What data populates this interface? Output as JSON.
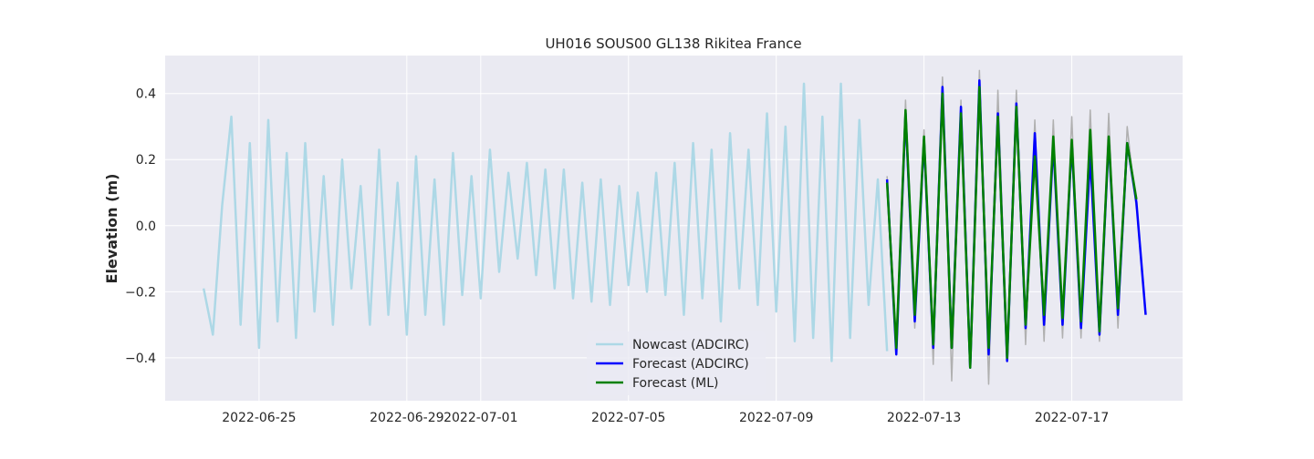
{
  "chart_data": {
    "type": "line",
    "title": "UH016 SOUS00 GL138 Rikitea France",
    "xlabel": "",
    "ylabel": "Elevation (m)",
    "x_ticks": [
      "2022-06-25",
      "2022-06-29",
      "2022-07-01",
      "2022-07-05",
      "2022-07-09",
      "2022-07-13",
      "2022-07-17"
    ],
    "y_ticks": [
      "0.4",
      "0.2",
      "0.0",
      "−0.2",
      "−0.4"
    ],
    "y_tick_values": [
      0.4,
      0.2,
      0.0,
      -0.2,
      -0.4
    ],
    "xlim": [
      "2022-06-22 11:00",
      "2022-07-20 00:00"
    ],
    "ylim": [
      -0.53,
      0.515
    ],
    "grid": true,
    "legend_position": "lower-center",
    "colors": {
      "background": "#eaeaf2",
      "grid": "#ffffff",
      "nowcast": "#add8e6",
      "forecast_adcirc": "#0000ff",
      "forecast_ml": "#008000",
      "observed": "#b0b0b0"
    },
    "series": [
      {
        "name": "Nowcast (ADCIRC)",
        "color": "#add8e6",
        "x": [
          "2022-06-23 12:00",
          "2022-06-23 18:00",
          "2022-06-24 00:00",
          "2022-06-24 06:00",
          "2022-06-24 12:00",
          "2022-06-24 18:00",
          "2022-06-25 00:00",
          "2022-06-25 06:00",
          "2022-06-25 12:00",
          "2022-06-25 18:00",
          "2022-06-26 00:00",
          "2022-06-26 06:00",
          "2022-06-26 12:00",
          "2022-06-26 18:00",
          "2022-06-27 00:00",
          "2022-06-27 06:00",
          "2022-06-27 12:00",
          "2022-06-27 18:00",
          "2022-06-28 00:00",
          "2022-06-28 06:00",
          "2022-06-28 12:00",
          "2022-06-28 18:00",
          "2022-06-29 00:00",
          "2022-06-29 06:00",
          "2022-06-29 12:00",
          "2022-06-29 18:00",
          "2022-06-30 00:00",
          "2022-06-30 06:00",
          "2022-06-30 12:00",
          "2022-06-30 18:00",
          "2022-07-01 00:00",
          "2022-07-01 06:00",
          "2022-07-01 12:00",
          "2022-07-01 18:00",
          "2022-07-02 00:00",
          "2022-07-02 06:00",
          "2022-07-02 12:00",
          "2022-07-02 18:00",
          "2022-07-03 00:00",
          "2022-07-03 06:00",
          "2022-07-03 12:00",
          "2022-07-03 18:00",
          "2022-07-04 00:00",
          "2022-07-04 06:00",
          "2022-07-04 12:00",
          "2022-07-04 18:00",
          "2022-07-05 00:00",
          "2022-07-05 06:00",
          "2022-07-05 12:00",
          "2022-07-05 18:00",
          "2022-07-06 00:00",
          "2022-07-06 06:00",
          "2022-07-06 12:00",
          "2022-07-06 18:00",
          "2022-07-07 00:00",
          "2022-07-07 06:00",
          "2022-07-07 12:00",
          "2022-07-07 18:00",
          "2022-07-08 00:00",
          "2022-07-08 06:00",
          "2022-07-08 12:00",
          "2022-07-08 18:00",
          "2022-07-09 00:00",
          "2022-07-09 06:00",
          "2022-07-09 12:00",
          "2022-07-09 18:00",
          "2022-07-10 00:00",
          "2022-07-10 06:00",
          "2022-07-10 12:00",
          "2022-07-10 18:00",
          "2022-07-11 00:00",
          "2022-07-11 06:00",
          "2022-07-11 12:00",
          "2022-07-11 18:00",
          "2022-07-12 00:00"
        ],
        "y": [
          -0.19,
          -0.33,
          0.06,
          0.33,
          -0.3,
          0.25,
          -0.37,
          0.32,
          -0.29,
          0.22,
          -0.34,
          0.25,
          -0.26,
          0.15,
          -0.3,
          0.2,
          -0.19,
          0.12,
          -0.3,
          0.23,
          -0.27,
          0.13,
          -0.33,
          0.21,
          -0.27,
          0.14,
          -0.3,
          0.22,
          -0.21,
          0.15,
          -0.22,
          0.23,
          -0.14,
          0.16,
          -0.1,
          0.19,
          -0.15,
          0.17,
          -0.19,
          0.17,
          -0.22,
          0.13,
          -0.23,
          0.14,
          -0.24,
          0.12,
          -0.18,
          0.1,
          -0.2,
          0.16,
          -0.21,
          0.19,
          -0.27,
          0.25,
          -0.22,
          0.23,
          -0.29,
          0.28,
          -0.19,
          0.23,
          -0.24,
          0.34,
          -0.26,
          0.3,
          -0.35,
          0.43,
          -0.34,
          0.33,
          -0.41,
          0.43,
          -0.34,
          0.32,
          -0.24,
          0.14,
          -0.38
        ]
      },
      {
        "name": "Forecast (ADCIRC)",
        "color": "#0000ff",
        "x": [
          "2022-07-12 00:00",
          "2022-07-12 06:00",
          "2022-07-12 12:00",
          "2022-07-12 18:00",
          "2022-07-13 00:00",
          "2022-07-13 06:00",
          "2022-07-13 12:00",
          "2022-07-13 18:00",
          "2022-07-14 00:00",
          "2022-07-14 06:00",
          "2022-07-14 12:00",
          "2022-07-14 18:00",
          "2022-07-15 00:00",
          "2022-07-15 06:00",
          "2022-07-15 12:00",
          "2022-07-15 18:00",
          "2022-07-16 00:00",
          "2022-07-16 06:00",
          "2022-07-16 12:00",
          "2022-07-16 18:00",
          "2022-07-17 00:00",
          "2022-07-17 06:00",
          "2022-07-17 12:00",
          "2022-07-17 18:00",
          "2022-07-18 00:00",
          "2022-07-18 06:00",
          "2022-07-18 12:00",
          "2022-07-18 18:00",
          "2022-07-19 00:00"
        ],
        "y": [
          0.14,
          -0.39,
          0.34,
          -0.29,
          0.26,
          -0.37,
          0.42,
          -0.37,
          0.36,
          -0.43,
          0.44,
          -0.39,
          0.34,
          -0.41,
          0.37,
          -0.31,
          0.28,
          -0.3,
          0.25,
          -0.3,
          0.25,
          -0.31,
          0.21,
          -0.33,
          0.26,
          -0.27,
          0.25,
          0.07,
          -0.27
        ]
      },
      {
        "name": "Forecast (ML)",
        "color": "#008000",
        "x": [
          "2022-07-12 00:00",
          "2022-07-12 06:00",
          "2022-07-12 12:00",
          "2022-07-12 18:00",
          "2022-07-13 00:00",
          "2022-07-13 06:00",
          "2022-07-13 12:00",
          "2022-07-13 18:00",
          "2022-07-14 00:00",
          "2022-07-14 06:00",
          "2022-07-14 12:00",
          "2022-07-14 18:00",
          "2022-07-15 00:00",
          "2022-07-15 06:00",
          "2022-07-15 12:00",
          "2022-07-15 18:00",
          "2022-07-16 00:00",
          "2022-07-16 06:00",
          "2022-07-16 12:00",
          "2022-07-16 18:00",
          "2022-07-17 00:00",
          "2022-07-17 06:00",
          "2022-07-17 12:00",
          "2022-07-17 18:00",
          "2022-07-18 00:00",
          "2022-07-18 06:00",
          "2022-07-18 12:00",
          "2022-07-18 18:00"
        ],
        "y": [
          0.13,
          -0.37,
          0.35,
          -0.27,
          0.27,
          -0.36,
          0.4,
          -0.37,
          0.34,
          -0.43,
          0.42,
          -0.37,
          0.33,
          -0.4,
          0.36,
          -0.3,
          0.21,
          -0.27,
          0.27,
          -0.28,
          0.26,
          -0.29,
          0.29,
          -0.32,
          0.27,
          -0.25,
          0.25,
          0.08
        ]
      },
      {
        "name": "",
        "color": "#b0b0b0",
        "x": [
          "2022-07-12 00:00",
          "2022-07-12 06:00",
          "2022-07-12 12:00",
          "2022-07-12 18:00",
          "2022-07-13 00:00",
          "2022-07-13 06:00",
          "2022-07-13 12:00",
          "2022-07-13 18:00",
          "2022-07-14 00:00",
          "2022-07-14 06:00",
          "2022-07-14 12:00",
          "2022-07-14 18:00",
          "2022-07-15 00:00",
          "2022-07-15 06:00",
          "2022-07-15 12:00",
          "2022-07-15 18:00",
          "2022-07-16 00:00",
          "2022-07-16 06:00",
          "2022-07-16 12:00",
          "2022-07-16 18:00",
          "2022-07-17 00:00",
          "2022-07-17 06:00",
          "2022-07-17 12:00",
          "2022-07-17 18:00",
          "2022-07-18 00:00",
          "2022-07-18 06:00",
          "2022-07-18 12:00",
          "2022-07-18 18:00"
        ],
        "y": [
          0.15,
          -0.38,
          0.38,
          -0.31,
          0.29,
          -0.42,
          0.45,
          -0.47,
          0.38,
          -0.42,
          0.47,
          -0.48,
          0.41,
          -0.37,
          0.41,
          -0.36,
          0.32,
          -0.35,
          0.32,
          -0.34,
          0.33,
          -0.34,
          0.35,
          -0.35,
          0.34,
          -0.31,
          0.3,
          0.05
        ]
      }
    ]
  }
}
